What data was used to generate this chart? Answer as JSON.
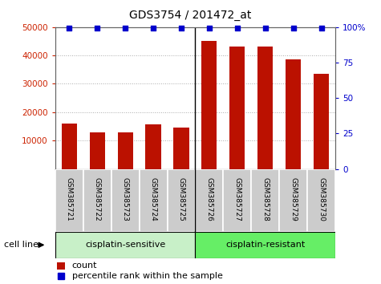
{
  "title": "GDS3754 / 201472_at",
  "samples": [
    "GSM385721",
    "GSM385722",
    "GSM385723",
    "GSM385724",
    "GSM385725",
    "GSM385726",
    "GSM385727",
    "GSM385728",
    "GSM385729",
    "GSM385730"
  ],
  "counts": [
    16000,
    13000,
    12800,
    15800,
    14700,
    45000,
    43000,
    43000,
    38500,
    33500
  ],
  "percentile_ranks": [
    99,
    99,
    99,
    99,
    99,
    99,
    99,
    99,
    99,
    99
  ],
  "group_names": [
    "cisplatin-sensitive",
    "cisplatin-resistant"
  ],
  "group_colors": [
    "#c8f0c8",
    "#66ee66"
  ],
  "bar_color": "#bb1100",
  "dot_color": "#0000cc",
  "ylim_left": [
    0,
    50000
  ],
  "ylim_right": [
    0,
    100
  ],
  "yticks_left": [
    10000,
    20000,
    30000,
    40000,
    50000
  ],
  "yticks_right": [
    0,
    25,
    50,
    75,
    100
  ],
  "yticklabels_left": [
    "10000",
    "20000",
    "30000",
    "40000",
    "50000"
  ],
  "yticklabels_right": [
    "0",
    "25",
    "50",
    "75",
    "100%"
  ],
  "left_tick_color": "#cc2200",
  "right_tick_color": "#0000cc",
  "bg_color": "#ffffff",
  "grid_color": "#aaaaaa",
  "sample_bg_color": "#cccccc",
  "xlabel": "cell line",
  "separator_index": 5,
  "n_samples": 10
}
